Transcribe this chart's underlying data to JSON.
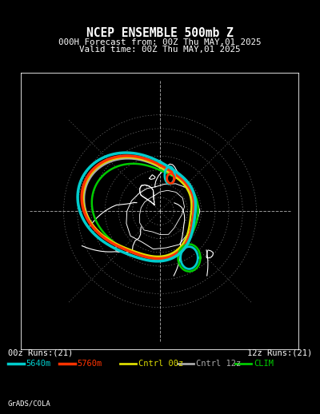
{
  "title_line1": "NCEP ENSEMBLE 500mb Z",
  "title_line2": "000H Forecast from: 00Z Thu MAY,01 2025",
  "title_line3": "Valid time: 00Z Thu MAY,01 2025",
  "bg_color": "#000000",
  "map_bg": "#000000",
  "border_color": "#ffffff",
  "grid_color": "#888888",
  "coastline_color": "#ffffff",
  "label_00z": "00z Runs:(21)",
  "label_12z": "12z Runs:(21)",
  "legend_items": [
    {
      "label": "5640m",
      "color": "#00cccc",
      "lw": 2.5
    },
    {
      "label": "5760m",
      "color": "#ff3300",
      "lw": 2.5
    },
    {
      "label": "Cntrl 00z",
      "color": "#dddd00",
      "lw": 2.0
    },
    {
      "label": "Cntrl 12z",
      "color": "#aaaaaa",
      "lw": 2.0
    },
    {
      "label": "CLIM",
      "color": "#00cc00",
      "lw": 2.0
    }
  ],
  "credit": "GrADS/COLA",
  "font_color": "#ffffff",
  "title_fontsize": 10.5,
  "subtitle_fontsize": 7.8,
  "legend_fontsize": 7.5,
  "label_fontsize": 7.5
}
